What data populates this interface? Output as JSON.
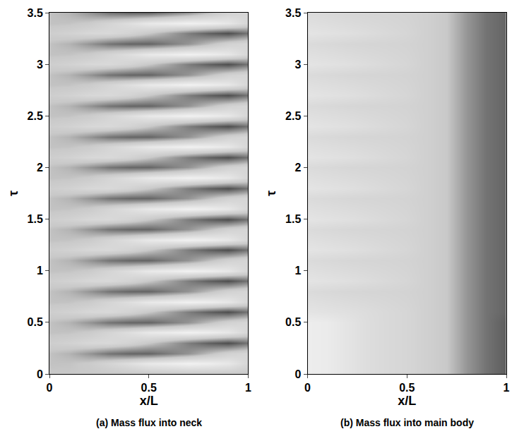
{
  "chart_data": [
    {
      "type": "heatmap",
      "title": "(a) Mass flux into neck",
      "x_label": "x/L",
      "y_label": "τ",
      "x": [
        0,
        0.1,
        0.2,
        0.3,
        0.4,
        0.5,
        0.6,
        0.7,
        0.8,
        0.9,
        1
      ],
      "y": [
        0,
        0.1,
        0.2,
        0.3,
        0.4,
        0.5,
        0.6,
        0.7,
        0.8,
        0.9,
        1,
        1.1,
        1.2,
        1.3,
        1.4,
        1.5,
        1.6,
        1.7,
        1.8,
        1.9,
        2,
        2.1,
        2.2,
        2.3,
        2.4,
        2.5,
        2.6,
        2.7,
        2.8,
        2.9,
        3,
        3.1,
        3.2,
        3.3,
        3.4,
        3.5
      ],
      "z": [
        [
          0,
          0,
          0,
          0,
          0,
          0,
          0,
          0,
          0,
          0,
          0
        ],
        [
          -0.05,
          -0.04,
          0.04,
          0.25,
          0.47,
          0.7,
          0.78,
          0.89,
          0.82,
          0.67,
          0.3
        ],
        [
          -0.05,
          -0.15,
          -0.36,
          -0.59,
          -0.69,
          -0.7,
          -0.54,
          -0.37,
          -0.09,
          0.19,
          0.3
        ],
        [
          0.1,
          0.19,
          0.32,
          0.35,
          0.22,
          0,
          -0.25,
          -0.53,
          -0.73,
          -0.86,
          -0.6
        ],
        [
          -0.05,
          -0.04,
          0.04,
          0.25,
          0.47,
          0.7,
          0.78,
          0.89,
          0.82,
          0.67,
          0.3
        ],
        [
          -0.05,
          -0.15,
          -0.36,
          -0.59,
          -0.69,
          -0.7,
          -0.54,
          -0.37,
          -0.09,
          0.19,
          0.3
        ],
        [
          0.1,
          0.19,
          0.32,
          0.35,
          0.22,
          0,
          -0.25,
          -0.53,
          -0.73,
          -0.86,
          -0.6
        ],
        [
          -0.05,
          -0.04,
          0.04,
          0.25,
          0.47,
          0.7,
          0.78,
          0.89,
          0.82,
          0.67,
          0.3
        ],
        [
          -0.05,
          -0.15,
          -0.36,
          -0.59,
          -0.69,
          -0.7,
          -0.54,
          -0.37,
          -0.09,
          0.19,
          0.3
        ],
        [
          0.1,
          0.19,
          0.32,
          0.35,
          0.22,
          0,
          -0.25,
          -0.53,
          -0.73,
          -0.86,
          -0.6
        ],
        [
          -0.05,
          -0.04,
          0.04,
          0.25,
          0.47,
          0.7,
          0.78,
          0.89,
          0.82,
          0.67,
          0.3
        ],
        [
          -0.05,
          -0.15,
          -0.36,
          -0.59,
          -0.69,
          -0.7,
          -0.54,
          -0.37,
          -0.09,
          0.19,
          0.3
        ],
        [
          0.1,
          0.19,
          0.32,
          0.35,
          0.22,
          0,
          -0.25,
          -0.53,
          -0.73,
          -0.86,
          -0.6
        ],
        [
          -0.05,
          -0.04,
          0.04,
          0.25,
          0.47,
          0.7,
          0.78,
          0.89,
          0.82,
          0.67,
          0.3
        ],
        [
          -0.05,
          -0.15,
          -0.36,
          -0.59,
          -0.69,
          -0.7,
          -0.54,
          -0.37,
          -0.09,
          0.19,
          0.3
        ],
        [
          0.1,
          0.19,
          0.32,
          0.35,
          0.22,
          0,
          -0.25,
          -0.53,
          -0.73,
          -0.86,
          -0.6
        ],
        [
          -0.05,
          -0.04,
          0.04,
          0.25,
          0.47,
          0.7,
          0.78,
          0.89,
          0.82,
          0.67,
          0.3
        ],
        [
          -0.05,
          -0.15,
          -0.36,
          -0.59,
          -0.69,
          -0.7,
          -0.54,
          -0.37,
          -0.09,
          0.19,
          0.3
        ],
        [
          0.1,
          0.19,
          0.32,
          0.35,
          0.22,
          0,
          -0.25,
          -0.53,
          -0.73,
          -0.86,
          -0.6
        ],
        [
          -0.05,
          -0.04,
          0.04,
          0.25,
          0.47,
          0.7,
          0.78,
          0.89,
          0.82,
          0.67,
          0.3
        ],
        [
          -0.05,
          -0.15,
          -0.36,
          -0.59,
          -0.69,
          -0.7,
          -0.54,
          -0.37,
          -0.09,
          0.19,
          0.3
        ],
        [
          0.1,
          0.19,
          0.32,
          0.35,
          0.22,
          0,
          -0.25,
          -0.53,
          -0.73,
          -0.86,
          -0.6
        ],
        [
          -0.05,
          -0.04,
          0.04,
          0.25,
          0.47,
          0.7,
          0.78,
          0.89,
          0.82,
          0.67,
          0.3
        ],
        [
          -0.05,
          -0.15,
          -0.36,
          -0.59,
          -0.69,
          -0.7,
          -0.54,
          -0.37,
          -0.09,
          0.19,
          0.3
        ],
        [
          0.1,
          0.19,
          0.32,
          0.35,
          0.22,
          0,
          -0.25,
          -0.53,
          -0.73,
          -0.86,
          -0.6
        ],
        [
          -0.05,
          -0.04,
          0.04,
          0.25,
          0.47,
          0.7,
          0.78,
          0.89,
          0.82,
          0.67,
          0.3
        ],
        [
          -0.05,
          -0.15,
          -0.36,
          -0.59,
          -0.69,
          -0.7,
          -0.54,
          -0.37,
          -0.09,
          0.19,
          0.3
        ],
        [
          0.1,
          0.19,
          0.32,
          0.35,
          0.22,
          0,
          -0.25,
          -0.53,
          -0.73,
          -0.86,
          -0.6
        ],
        [
          -0.05,
          -0.04,
          0.04,
          0.25,
          0.47,
          0.7,
          0.78,
          0.89,
          0.82,
          0.67,
          0.3
        ],
        [
          -0.05,
          -0.15,
          -0.36,
          -0.59,
          -0.69,
          -0.7,
          -0.54,
          -0.37,
          -0.09,
          0.19,
          0.3
        ],
        [
          0.1,
          0.19,
          0.32,
          0.35,
          0.22,
          0,
          -0.25,
          -0.53,
          -0.73,
          -0.86,
          -0.6
        ],
        [
          -0.05,
          -0.04,
          0.04,
          0.25,
          0.47,
          0.7,
          0.78,
          0.89,
          0.82,
          0.67,
          0.3
        ],
        [
          -0.05,
          -0.15,
          -0.36,
          -0.59,
          -0.69,
          -0.7,
          -0.54,
          -0.37,
          -0.09,
          0.19,
          0.3
        ],
        [
          0.1,
          0.19,
          0.32,
          0.35,
          0.22,
          0,
          -0.25,
          -0.53,
          -0.73,
          -0.86,
          -0.6
        ],
        [
          -0.05,
          -0.04,
          0.04,
          0.25,
          0.47,
          0.7,
          0.78,
          0.89,
          0.82,
          0.67,
          0.3
        ],
        [
          -0.05,
          -0.15,
          -0.36,
          -0.59,
          -0.69,
          -0.7,
          -0.54,
          -0.37,
          -0.09,
          0.19,
          0.3
        ]
      ],
      "zlim": [
        -1,
        1
      ],
      "xlim": [
        0,
        1
      ],
      "xticks": [
        0,
        0.5,
        1
      ],
      "ylim": [
        0,
        3.5
      ],
      "yticks": [
        0,
        0.5,
        1,
        1.5,
        2,
        2.5,
        3,
        3.5
      ]
    },
    {
      "type": "heatmap",
      "title": "(b) Mass flux into main body",
      "x_label": "x/L",
      "y_label": "τ",
      "x": [
        0,
        0.1,
        0.2,
        0.3,
        0.4,
        0.5,
        0.6,
        0.7,
        0.8,
        0.9,
        1
      ],
      "y": [
        0,
        0.1,
        0.2,
        0.3,
        0.4,
        0.5,
        0.6,
        0.7,
        0.8,
        0.9,
        1,
        1.1,
        1.2,
        1.3,
        1.4,
        1.5,
        1.6,
        1.7,
        1.8,
        1.9,
        2,
        2.1,
        2.2,
        2.3,
        2.4,
        2.5,
        2.6,
        2.7,
        2.8,
        2.9,
        3,
        3.1,
        3.2,
        3.3,
        3.4,
        3.5
      ],
      "z": [
        [
          0.8,
          0.75,
          0.6,
          0.45,
          0.35,
          0.28,
          0.15,
          0,
          -0.35,
          -0.6,
          -0.75
        ],
        [
          0.8,
          0.75,
          0.6,
          0.45,
          0.35,
          0.28,
          0.15,
          0,
          -0.35,
          -0.6,
          -0.75
        ],
        [
          0.8,
          0.75,
          0.6,
          0.45,
          0.35,
          0.28,
          0.15,
          0,
          -0.35,
          -0.6,
          -0.75
        ],
        [
          0.8,
          0.75,
          0.6,
          0.45,
          0.35,
          0.28,
          0.15,
          0,
          -0.35,
          -0.6,
          -0.75
        ],
        [
          0.8,
          0.75,
          0.6,
          0.45,
          0.35,
          0.28,
          0.15,
          0,
          -0.35,
          -0.6,
          -0.75
        ],
        [
          0.8,
          0.75,
          0.6,
          0.45,
          0.35,
          0.28,
          0.15,
          0,
          -0.35,
          -0.6,
          -0.75
        ],
        [
          0.6,
          0.55,
          0.5,
          0.43,
          0.35,
          0.28,
          0.15,
          0,
          -0.35,
          -0.6,
          -0.7
        ],
        [
          0.5,
          0.45,
          0.4,
          0.35,
          0.3,
          0.25,
          0.15,
          0,
          -0.35,
          -0.6,
          -0.7
        ],
        [
          0.4,
          0.35,
          0.3,
          0.27,
          0.25,
          0.22,
          0.15,
          0,
          -0.35,
          -0.6,
          -0.7
        ],
        [
          0.6,
          0.55,
          0.5,
          0.43,
          0.35,
          0.28,
          0.15,
          0,
          -0.35,
          -0.6,
          -0.7
        ],
        [
          0.5,
          0.45,
          0.4,
          0.35,
          0.3,
          0.25,
          0.15,
          0,
          -0.35,
          -0.6,
          -0.7
        ],
        [
          0.4,
          0.35,
          0.3,
          0.27,
          0.25,
          0.22,
          0.15,
          0,
          -0.35,
          -0.6,
          -0.7
        ],
        [
          0.6,
          0.55,
          0.5,
          0.43,
          0.35,
          0.28,
          0.15,
          0,
          -0.35,
          -0.6,
          -0.7
        ],
        [
          0.5,
          0.45,
          0.4,
          0.35,
          0.3,
          0.25,
          0.15,
          0,
          -0.35,
          -0.6,
          -0.7
        ],
        [
          0.4,
          0.35,
          0.3,
          0.27,
          0.25,
          0.22,
          0.15,
          0,
          -0.35,
          -0.6,
          -0.7
        ],
        [
          0.6,
          0.55,
          0.5,
          0.43,
          0.35,
          0.28,
          0.15,
          0,
          -0.35,
          -0.6,
          -0.7
        ],
        [
          0.5,
          0.45,
          0.4,
          0.35,
          0.3,
          0.25,
          0.15,
          0,
          -0.35,
          -0.6,
          -0.7
        ],
        [
          0.4,
          0.35,
          0.3,
          0.27,
          0.25,
          0.22,
          0.15,
          0,
          -0.35,
          -0.6,
          -0.7
        ],
        [
          0.6,
          0.55,
          0.5,
          0.43,
          0.35,
          0.28,
          0.15,
          0,
          -0.35,
          -0.6,
          -0.7
        ],
        [
          0.5,
          0.45,
          0.4,
          0.35,
          0.3,
          0.25,
          0.15,
          0,
          -0.35,
          -0.6,
          -0.7
        ],
        [
          0.4,
          0.35,
          0.3,
          0.27,
          0.25,
          0.22,
          0.15,
          0,
          -0.35,
          -0.6,
          -0.7
        ],
        [
          0.6,
          0.55,
          0.5,
          0.43,
          0.35,
          0.28,
          0.15,
          0,
          -0.35,
          -0.6,
          -0.7
        ],
        [
          0.5,
          0.45,
          0.4,
          0.35,
          0.3,
          0.25,
          0.15,
          0,
          -0.35,
          -0.6,
          -0.7
        ],
        [
          0.4,
          0.35,
          0.3,
          0.27,
          0.25,
          0.22,
          0.15,
          0,
          -0.35,
          -0.6,
          -0.7
        ],
        [
          0.6,
          0.55,
          0.5,
          0.43,
          0.35,
          0.28,
          0.15,
          0,
          -0.35,
          -0.6,
          -0.7
        ],
        [
          0.5,
          0.45,
          0.4,
          0.35,
          0.3,
          0.25,
          0.15,
          0,
          -0.35,
          -0.6,
          -0.7
        ],
        [
          0.4,
          0.35,
          0.3,
          0.27,
          0.25,
          0.22,
          0.15,
          0,
          -0.35,
          -0.6,
          -0.7
        ],
        [
          0.6,
          0.55,
          0.5,
          0.43,
          0.35,
          0.28,
          0.15,
          0,
          -0.35,
          -0.6,
          -0.7
        ],
        [
          0.5,
          0.45,
          0.4,
          0.35,
          0.3,
          0.25,
          0.15,
          0,
          -0.35,
          -0.6,
          -0.7
        ],
        [
          0.4,
          0.35,
          0.3,
          0.27,
          0.25,
          0.22,
          0.15,
          0,
          -0.35,
          -0.6,
          -0.7
        ],
        [
          0.6,
          0.55,
          0.5,
          0.43,
          0.35,
          0.28,
          0.15,
          0,
          -0.35,
          -0.6,
          -0.7
        ],
        [
          0.5,
          0.45,
          0.4,
          0.35,
          0.3,
          0.25,
          0.15,
          0,
          -0.35,
          -0.6,
          -0.7
        ],
        [
          0.4,
          0.35,
          0.3,
          0.27,
          0.25,
          0.22,
          0.15,
          0,
          -0.35,
          -0.6,
          -0.7
        ],
        [
          0.6,
          0.55,
          0.5,
          0.43,
          0.35,
          0.28,
          0.15,
          0,
          -0.35,
          -0.6,
          -0.7
        ],
        [
          0.5,
          0.45,
          0.4,
          0.35,
          0.3,
          0.25,
          0.15,
          0,
          -0.35,
          -0.6,
          -0.7
        ],
        [
          0.4,
          0.35,
          0.3,
          0.27,
          0.25,
          0.22,
          0.15,
          0,
          -0.35,
          -0.6,
          -0.7
        ]
      ],
      "zlim": [
        -1,
        1
      ],
      "xlim": [
        0,
        1
      ],
      "xticks": [
        0,
        0.5,
        1
      ],
      "ylim": [
        0,
        3.5
      ],
      "yticks": [
        0,
        0.5,
        1,
        1.5,
        2,
        2.5,
        3,
        3.5
      ]
    }
  ]
}
